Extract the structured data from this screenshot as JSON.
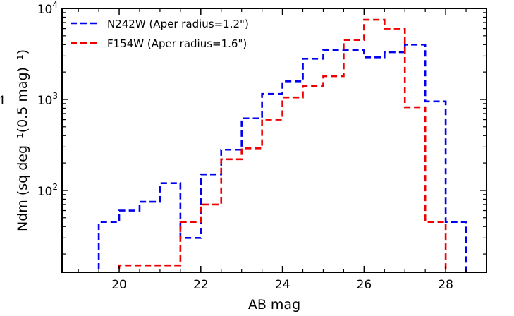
{
  "chart_data": {
    "type": "step-histogram",
    "title": "",
    "xlabel": "AB mag",
    "ylabel": "Ndm (sq deg⁻¹(0.5 mag)⁻¹)",
    "xlim": [
      18.6,
      29.0
    ],
    "ylim_log10": [
      1.1,
      4.0
    ],
    "yscale": "log",
    "grid": false,
    "legend_position": "top-left",
    "x_ticks": [
      {
        "value": 20,
        "label": "20"
      },
      {
        "value": 22,
        "label": "22"
      },
      {
        "value": 24,
        "label": "24"
      },
      {
        "value": 26,
        "label": "26"
      },
      {
        "value": 28,
        "label": "28"
      }
    ],
    "y_ticks": [
      {
        "value": 100,
        "base": "10",
        "exp": "2"
      },
      {
        "value": 1000,
        "base": "10",
        "exp": "3"
      },
      {
        "value": 10000,
        "base": "10",
        "exp": "4"
      }
    ],
    "clipped_left_text": "1",
    "series": [
      {
        "name": "N242W (Aper radius=1.2\")",
        "color": "#0000ee",
        "bin_edges": [
          19.5,
          20.0,
          20.5,
          21.0,
          21.5,
          22.0,
          22.5,
          23.0,
          23.5,
          24.0,
          24.5,
          25.0,
          25.5,
          26.0,
          26.5,
          27.0,
          27.5,
          28.0,
          28.5
        ],
        "values": [
          45,
          60,
          75,
          120,
          30,
          150,
          280,
          620,
          1150,
          1580,
          2800,
          3500,
          3500,
          2900,
          3300,
          4000,
          950,
          45
        ]
      },
      {
        "name": "F154W (Aper radius=1.6\")",
        "color": "#ee0000",
        "bin_edges": [
          20.0,
          20.5,
          21.0,
          21.5,
          22.0,
          22.5,
          23.0,
          23.5,
          24.0,
          24.5,
          25.0,
          25.5,
          26.0,
          26.5,
          27.0,
          27.5,
          28.0
        ],
        "values": [
          15,
          15,
          15,
          45,
          70,
          220,
          290,
          600,
          1050,
          1400,
          1800,
          4500,
          7500,
          6000,
          820,
          45
        ]
      }
    ]
  }
}
